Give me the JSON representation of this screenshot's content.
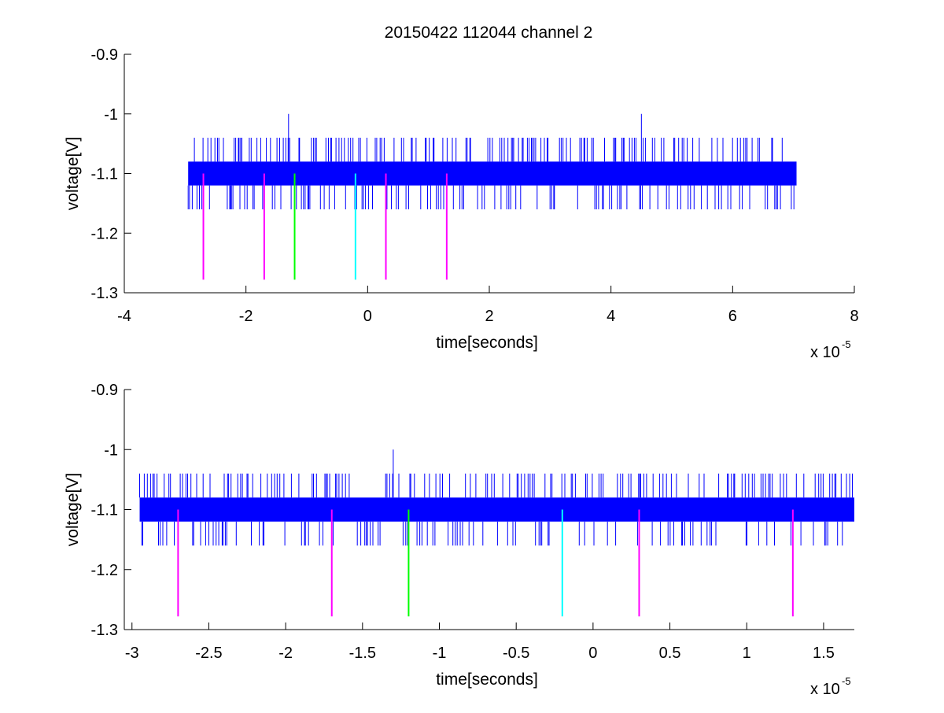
{
  "figure": {
    "title": "20150422 112044 channel 2"
  },
  "chart_data": [
    {
      "type": "line",
      "title": "20150422 112044 channel 2",
      "xlabel": "time[seconds]",
      "ylabel": "voltage[V]",
      "x_multiplier_label": "x 10",
      "x_multiplier_exponent": "-5",
      "xlim": [
        -4,
        8
      ],
      "ylim": [
        -1.3,
        -0.9
      ],
      "x_ticks": [
        -4,
        -2,
        0,
        2,
        4,
        6,
        8
      ],
      "x_tick_labels": [
        "-4",
        "-2",
        "0",
        "2",
        "4",
        "6",
        "8"
      ],
      "y_ticks": [
        -1.3,
        -1.2,
        -1.1,
        -1.0,
        -0.9
      ],
      "y_tick_labels": [
        "-1.3",
        "-1.2",
        "-1.1",
        "-1",
        "-0.9"
      ],
      "grid": false,
      "signal": {
        "color": "#0000ff",
        "x_range": [
          -2.95,
          7.05
        ],
        "band": [
          -1.12,
          -1.08
        ],
        "noise_extent": [
          -1.16,
          -1.04
        ],
        "spikes": [
          {
            "x": -1.3,
            "y": -1.0
          },
          {
            "x": 4.5,
            "y": -1.0
          }
        ]
      },
      "markers": [
        {
          "x": -2.7,
          "y_top": -1.1,
          "y_bottom": -1.278,
          "color": "#ff00ff"
        },
        {
          "x": -1.7,
          "y_top": -1.1,
          "y_bottom": -1.278,
          "color": "#ff00ff"
        },
        {
          "x": -1.2,
          "y_top": -1.1,
          "y_bottom": -1.278,
          "color": "#00ff00"
        },
        {
          "x": -0.2,
          "y_top": -1.1,
          "y_bottom": -1.278,
          "color": "#00ffff"
        },
        {
          "x": 0.3,
          "y_top": -1.1,
          "y_bottom": -1.278,
          "color": "#ff00ff"
        },
        {
          "x": 1.3,
          "y_top": -1.1,
          "y_bottom": -1.278,
          "color": "#ff00ff"
        }
      ]
    },
    {
      "type": "line",
      "title": "",
      "xlabel": "time[seconds]",
      "ylabel": "voltage[V]",
      "x_multiplier_label": "x 10",
      "x_multiplier_exponent": "-5",
      "xlim": [
        -3.05,
        1.7
      ],
      "ylim": [
        -1.3,
        -0.9
      ],
      "x_ticks": [
        -3,
        -2.5,
        -2,
        -1.5,
        -1,
        -0.5,
        0,
        0.5,
        1,
        1.5
      ],
      "x_tick_labels": [
        "-3",
        "-2.5",
        "-2",
        "-1.5",
        "-1",
        "-0.5",
        "0",
        "0.5",
        "1",
        "1.5"
      ],
      "y_ticks": [
        -1.3,
        -1.2,
        -1.1,
        -1.0,
        -0.9
      ],
      "y_tick_labels": [
        "-1.3",
        "-1.2",
        "-1.1",
        "-1",
        "-0.9"
      ],
      "grid": false,
      "signal": {
        "color": "#0000ff",
        "x_range": [
          -2.95,
          1.7
        ],
        "band": [
          -1.12,
          -1.08
        ],
        "noise_extent": [
          -1.16,
          -1.04
        ],
        "spikes": [
          {
            "x": -1.3,
            "y": -1.0
          }
        ]
      },
      "markers": [
        {
          "x": -2.7,
          "y_top": -1.1,
          "y_bottom": -1.278,
          "color": "#ff00ff"
        },
        {
          "x": -1.7,
          "y_top": -1.1,
          "y_bottom": -1.278,
          "color": "#ff00ff"
        },
        {
          "x": -1.2,
          "y_top": -1.1,
          "y_bottom": -1.278,
          "color": "#00ff00"
        },
        {
          "x": -0.2,
          "y_top": -1.1,
          "y_bottom": -1.278,
          "color": "#00ffff"
        },
        {
          "x": 0.3,
          "y_top": -1.1,
          "y_bottom": -1.278,
          "color": "#ff00ff"
        },
        {
          "x": 1.3,
          "y_top": -1.1,
          "y_bottom": -1.278,
          "color": "#ff00ff"
        }
      ]
    }
  ]
}
